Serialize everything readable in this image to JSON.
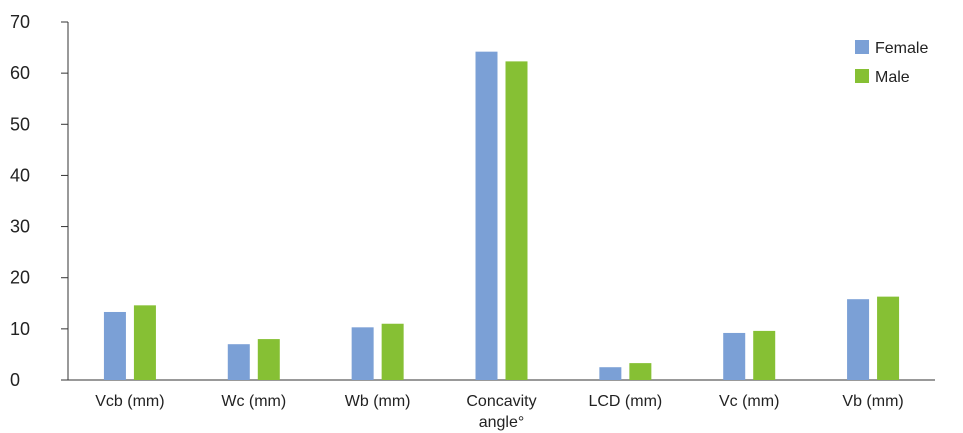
{
  "chart_data": {
    "type": "bar",
    "categories": [
      [
        "Vcb (mm)"
      ],
      [
        "Wc (mm)"
      ],
      [
        "Wb (mm)"
      ],
      [
        "Concavity",
        "angle°"
      ],
      [
        "LCD (mm)"
      ],
      [
        "Vc (mm)"
      ],
      [
        "Vb (mm)"
      ]
    ],
    "series": [
      {
        "name": "Female",
        "color": "#7ba0d6",
        "values": [
          13.3,
          7.0,
          10.3,
          64.2,
          2.5,
          9.2,
          15.8
        ]
      },
      {
        "name": "Male",
        "color": "#86c034",
        "values": [
          14.6,
          8.0,
          11.0,
          62.3,
          3.3,
          9.6,
          16.3
        ]
      }
    ],
    "ylim": [
      0,
      70
    ],
    "yticks": [
      0,
      10,
      20,
      30,
      40,
      50,
      60,
      70
    ],
    "legend_position": "top-right",
    "grid": false
  }
}
